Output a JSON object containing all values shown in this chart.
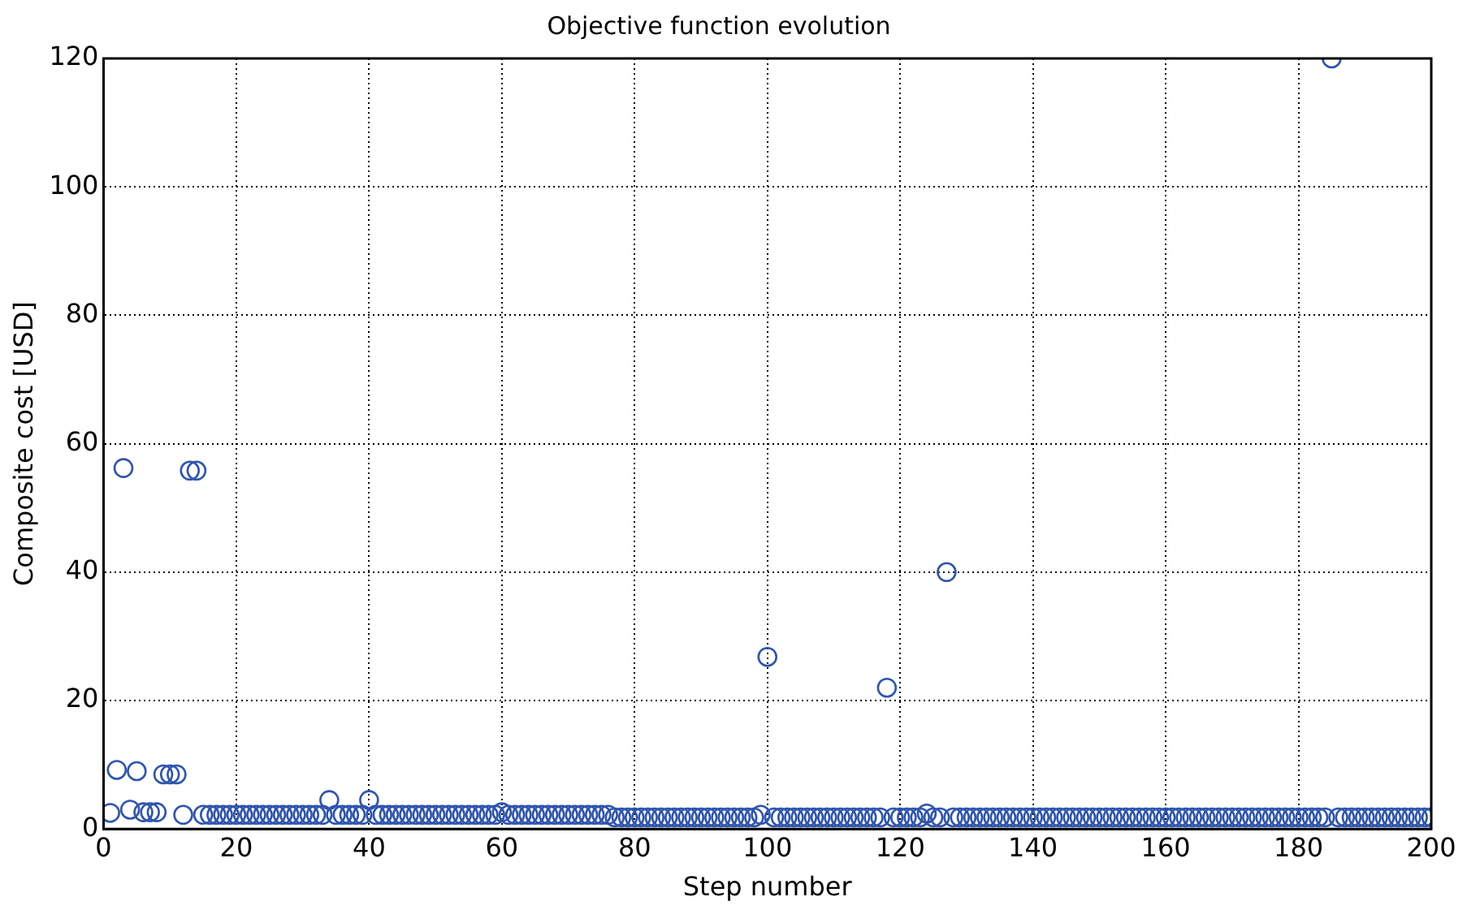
{
  "chart_data": {
    "type": "scatter",
    "title": "Objective function evolution",
    "xlabel": "Step number",
    "ylabel": "Composite cost [USD]",
    "x": [
      1,
      2,
      3,
      4,
      5,
      6,
      7,
      8,
      9,
      10,
      11,
      12,
      13,
      14,
      15,
      16,
      17,
      18,
      19,
      20,
      21,
      22,
      23,
      24,
      25,
      26,
      27,
      28,
      29,
      30,
      31,
      32,
      33,
      34,
      35,
      36,
      37,
      38,
      39,
      40,
      41,
      42,
      43,
      44,
      45,
      46,
      47,
      48,
      49,
      50,
      51,
      52,
      53,
      54,
      55,
      56,
      57,
      58,
      59,
      60,
      61,
      62,
      63,
      64,
      65,
      66,
      67,
      68,
      69,
      70,
      71,
      72,
      73,
      74,
      75,
      76,
      77,
      78,
      79,
      80,
      81,
      82,
      83,
      84,
      85,
      86,
      87,
      88,
      89,
      90,
      91,
      92,
      93,
      94,
      95,
      96,
      97,
      98,
      99,
      100,
      101,
      102,
      103,
      104,
      105,
      106,
      107,
      108,
      109,
      110,
      111,
      112,
      113,
      114,
      115,
      116,
      117,
      118,
      119,
      120,
      121,
      122,
      123,
      124,
      125,
      126,
      127,
      128,
      129,
      130,
      131,
      132,
      133,
      134,
      135,
      136,
      137,
      138,
      139,
      140,
      141,
      142,
      143,
      144,
      145,
      146,
      147,
      148,
      149,
      150,
      151,
      152,
      153,
      154,
      155,
      156,
      157,
      158,
      159,
      160,
      161,
      162,
      163,
      164,
      165,
      166,
      167,
      168,
      169,
      170,
      171,
      172,
      173,
      174,
      175,
      176,
      177,
      178,
      179,
      180,
      181,
      182,
      183,
      184,
      185,
      186,
      187,
      188,
      189,
      190,
      191,
      192,
      193,
      194,
      195,
      196,
      197,
      198,
      199,
      200
    ],
    "values": [
      2.5,
      9.2,
      56.2,
      3.0,
      9.0,
      2.6,
      2.6,
      2.6,
      8.5,
      8.5,
      8.5,
      2.2,
      55.8,
      55.8,
      2.2,
      2.2,
      2.2,
      2.2,
      2.2,
      2.2,
      2.2,
      2.2,
      2.2,
      2.2,
      2.2,
      2.2,
      2.2,
      2.2,
      2.2,
      2.2,
      2.2,
      2.2,
      2.2,
      4.5,
      2.2,
      2.2,
      2.2,
      2.2,
      2.2,
      4.5,
      2.2,
      2.2,
      2.2,
      2.2,
      2.2,
      2.2,
      2.2,
      2.2,
      2.2,
      2.2,
      2.2,
      2.2,
      2.2,
      2.2,
      2.2,
      2.2,
      2.2,
      2.2,
      2.2,
      2.6,
      2.2,
      2.2,
      2.2,
      2.2,
      2.2,
      2.2,
      2.2,
      2.2,
      2.2,
      2.2,
      2.2,
      2.2,
      2.2,
      2.2,
      2.2,
      2.2,
      1.8,
      1.8,
      1.8,
      1.8,
      1.8,
      1.8,
      1.8,
      1.8,
      1.8,
      1.8,
      1.8,
      1.8,
      1.8,
      1.8,
      1.8,
      1.8,
      1.8,
      1.8,
      1.8,
      1.8,
      1.8,
      1.8,
      2.2,
      26.8,
      1.8,
      1.8,
      1.8,
      1.8,
      1.8,
      1.8,
      1.8,
      1.8,
      1.8,
      1.8,
      1.8,
      1.8,
      1.8,
      1.8,
      1.8,
      1.8,
      1.8,
      22,
      1.8,
      1.8,
      1.8,
      1.8,
      1.8,
      2.4,
      1.8,
      1.8,
      40,
      1.8,
      1.8,
      1.8,
      1.8,
      1.8,
      1.8,
      1.8,
      1.8,
      1.8,
      1.8,
      1.8,
      1.8,
      1.8,
      1.8,
      1.8,
      1.8,
      1.8,
      1.8,
      1.8,
      1.8,
      1.8,
      1.8,
      1.8,
      1.8,
      1.8,
      1.8,
      1.8,
      1.8,
      1.8,
      1.8,
      1.8,
      1.8,
      1.8,
      1.8,
      1.8,
      1.8,
      1.8,
      1.8,
      1.8,
      1.8,
      1.8,
      1.8,
      1.8,
      1.8,
      1.8,
      1.8,
      1.8,
      1.8,
      1.8,
      1.8,
      1.8,
      1.8,
      1.8,
      1.8,
      1.8,
      1.8,
      1.8,
      120,
      1.8,
      1.8,
      1.8,
      1.8,
      1.8,
      1.8,
      1.8,
      1.8,
      1.8,
      1.8,
      1.8,
      1.8,
      1.8,
      1.8,
      1.8
    ],
    "color": "#2f55b0",
    "marker": "circle",
    "xlim": [
      0,
      200
    ],
    "xticks": [
      0,
      20,
      40,
      60,
      80,
      100,
      120,
      140,
      160,
      180,
      200
    ],
    "ylim": [
      0,
      120
    ],
    "yticks": [
      0,
      20,
      40,
      60,
      80,
      100,
      120
    ],
    "grid": true,
    "legend": false
  }
}
